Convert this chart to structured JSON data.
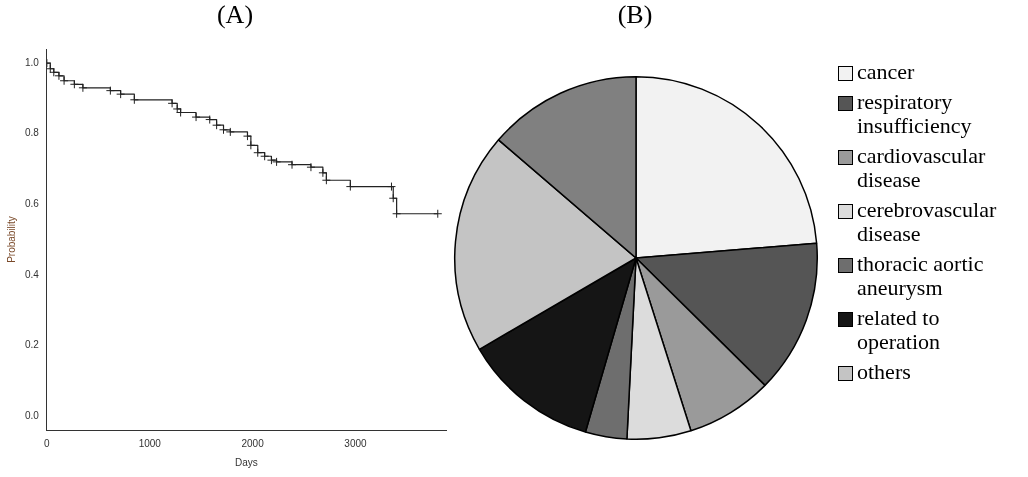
{
  "chart_data": [
    {
      "type": "step",
      "title": "(A)",
      "xlabel": "Days",
      "ylabel": "Probability",
      "xlim": [
        0,
        3880
      ],
      "xticks": [
        0,
        1000,
        2000,
        3000
      ],
      "ylim": [
        -0.04,
        1.04
      ],
      "yticks": [
        {
          "value": 0,
          "label": "0.0"
        },
        0.2,
        0.4,
        0.6,
        0.8,
        {
          "value": 1,
          "label": "1.0"
        }
      ],
      "grid": false,
      "marker": "cross",
      "legend": false,
      "series": [
        {
          "color": "#222222",
          "x": [
            0,
            33,
            67,
            117,
            167,
            267,
            350,
            617,
            717,
            850,
            1217,
            1267,
            1300,
            1450,
            1583,
            1650,
            1717,
            1783,
            1950,
            1983,
            2050,
            2117,
            2183,
            2233,
            2383,
            2567,
            2683,
            2717,
            2950,
            3350,
            3367,
            3400,
            3800
          ],
          "values": [
            1.0,
            0.984,
            0.974,
            0.964,
            0.95,
            0.94,
            0.93,
            0.922,
            0.912,
            0.896,
            0.886,
            0.87,
            0.86,
            0.847,
            0.84,
            0.824,
            0.811,
            0.805,
            0.793,
            0.767,
            0.746,
            0.736,
            0.725,
            0.72,
            0.712,
            0.705,
            0.689,
            0.668,
            0.65,
            0.65,
            0.617,
            0.573,
            0.573
          ]
        }
      ]
    },
    {
      "type": "pie",
      "title": "(B)",
      "legend": "right",
      "categories": [
        "cancer",
        "respiratory insufficiency",
        "cardiovascular disease",
        "cerebrovascular disease",
        "thoracic aortic aneurysm",
        "related to operation",
        "others",
        null
      ],
      "values": [
        23.7,
        13.7,
        7.7,
        5.7,
        3.7,
        12.1,
        19.7,
        13.7
      ],
      "colors": [
        "#f2f2f2",
        "#555555",
        "#9a9a9a",
        "#dcdcdc",
        "#6e6e6e",
        "#151515",
        "#c4c4c4",
        "#808080"
      ]
    }
  ]
}
